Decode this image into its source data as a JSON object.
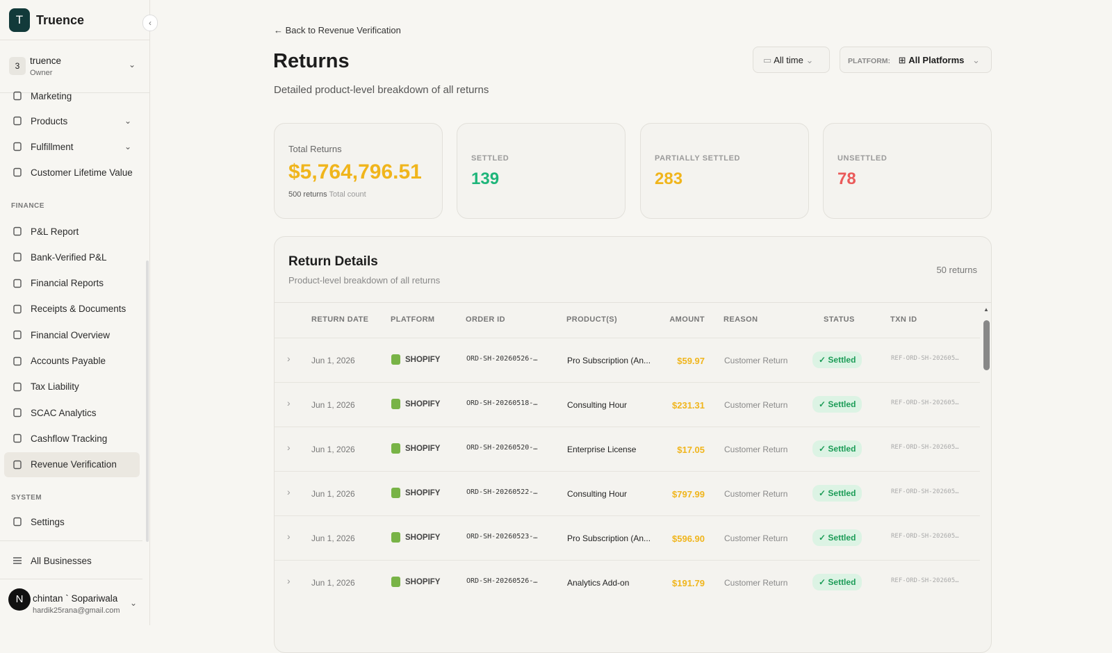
{
  "sidebar": {
    "brand_initial": "T",
    "brand": "Truence",
    "workspace": {
      "badge": "3",
      "name": "truence",
      "role": "Owner"
    },
    "nav_top": [
      "Marketing",
      "Products",
      "Fulfillment",
      "Customer Lifetime Value"
    ],
    "finance_heading": "FINANCE",
    "nav_finance": [
      "P&L Report",
      "Bank-Verified P&L",
      "Financial Reports",
      "Receipts & Documents",
      "Financial Overview",
      "Accounts Payable",
      "Tax Liability",
      "SCAC Analytics",
      "Cashflow Tracking",
      "Revenue Verification"
    ],
    "system_heading": "SYSTEM",
    "nav_system": [
      "Settings"
    ],
    "all_businesses": "All Businesses",
    "user": {
      "initial": "N",
      "name": "chintan ` Sopariwala",
      "email": "hardik25rana@gmail.com"
    }
  },
  "header": {
    "back": "Back to Revenue Verification",
    "title": "Returns",
    "subtitle": "Detailed product-level breakdown of all returns",
    "time_filter": "All time",
    "platform_label": "PLATFORM:",
    "platform_value": "All Platforms"
  },
  "stats": {
    "total": {
      "label": "Total Returns",
      "value": "$5,764,796.51",
      "count": "500 returns",
      "count_note": "Total count"
    },
    "settled": {
      "label": "SETTLED",
      "value": 139
    },
    "partial": {
      "label": "PARTIALLY SETTLED",
      "value": 283
    },
    "unsettled": {
      "label": "UNSETTLED",
      "value": 78
    }
  },
  "table": {
    "title": "Return Details",
    "subtitle": "Product-level breakdown of all returns",
    "count": "50 returns",
    "columns": [
      "RETURN DATE",
      "PLATFORM",
      "ORDER ID",
      "PRODUCT(S)",
      "AMOUNT",
      "REASON",
      "STATUS",
      "TXN ID"
    ],
    "rows": [
      [
        "Jun 1, 2026",
        "SHOPIFY",
        "ORD-SH-20260526-…",
        "Pro Subscription (An...",
        "$59.97",
        "Customer Return",
        "Settled",
        "REF-ORD-SH-202605…"
      ],
      [
        "Jun 1, 2026",
        "SHOPIFY",
        "ORD-SH-20260518-…",
        "Consulting Hour",
        "$231.31",
        "Customer Return",
        "Settled",
        "REF-ORD-SH-202605…"
      ],
      [
        "Jun 1, 2026",
        "SHOPIFY",
        "ORD-SH-20260520-…",
        "Enterprise License",
        "$17.05",
        "Customer Return",
        "Settled",
        "REF-ORD-SH-202605…"
      ],
      [
        "Jun 1, 2026",
        "SHOPIFY",
        "ORD-SH-20260522-…",
        "Consulting Hour",
        "$797.99",
        "Customer Return",
        "Settled",
        "REF-ORD-SH-202605…"
      ],
      [
        "Jun 1, 2026",
        "SHOPIFY",
        "ORD-SH-20260523-…",
        "Pro Subscription (An...",
        "$596.90",
        "Customer Return",
        "Settled",
        "REF-ORD-SH-202605…"
      ],
      [
        "Jun 1, 2026",
        "SHOPIFY",
        "ORD-SH-20260526-…",
        "Analytics Add-on",
        "$191.79",
        "Customer Return",
        "Settled",
        "REF-ORD-SH-202605…"
      ]
    ]
  }
}
